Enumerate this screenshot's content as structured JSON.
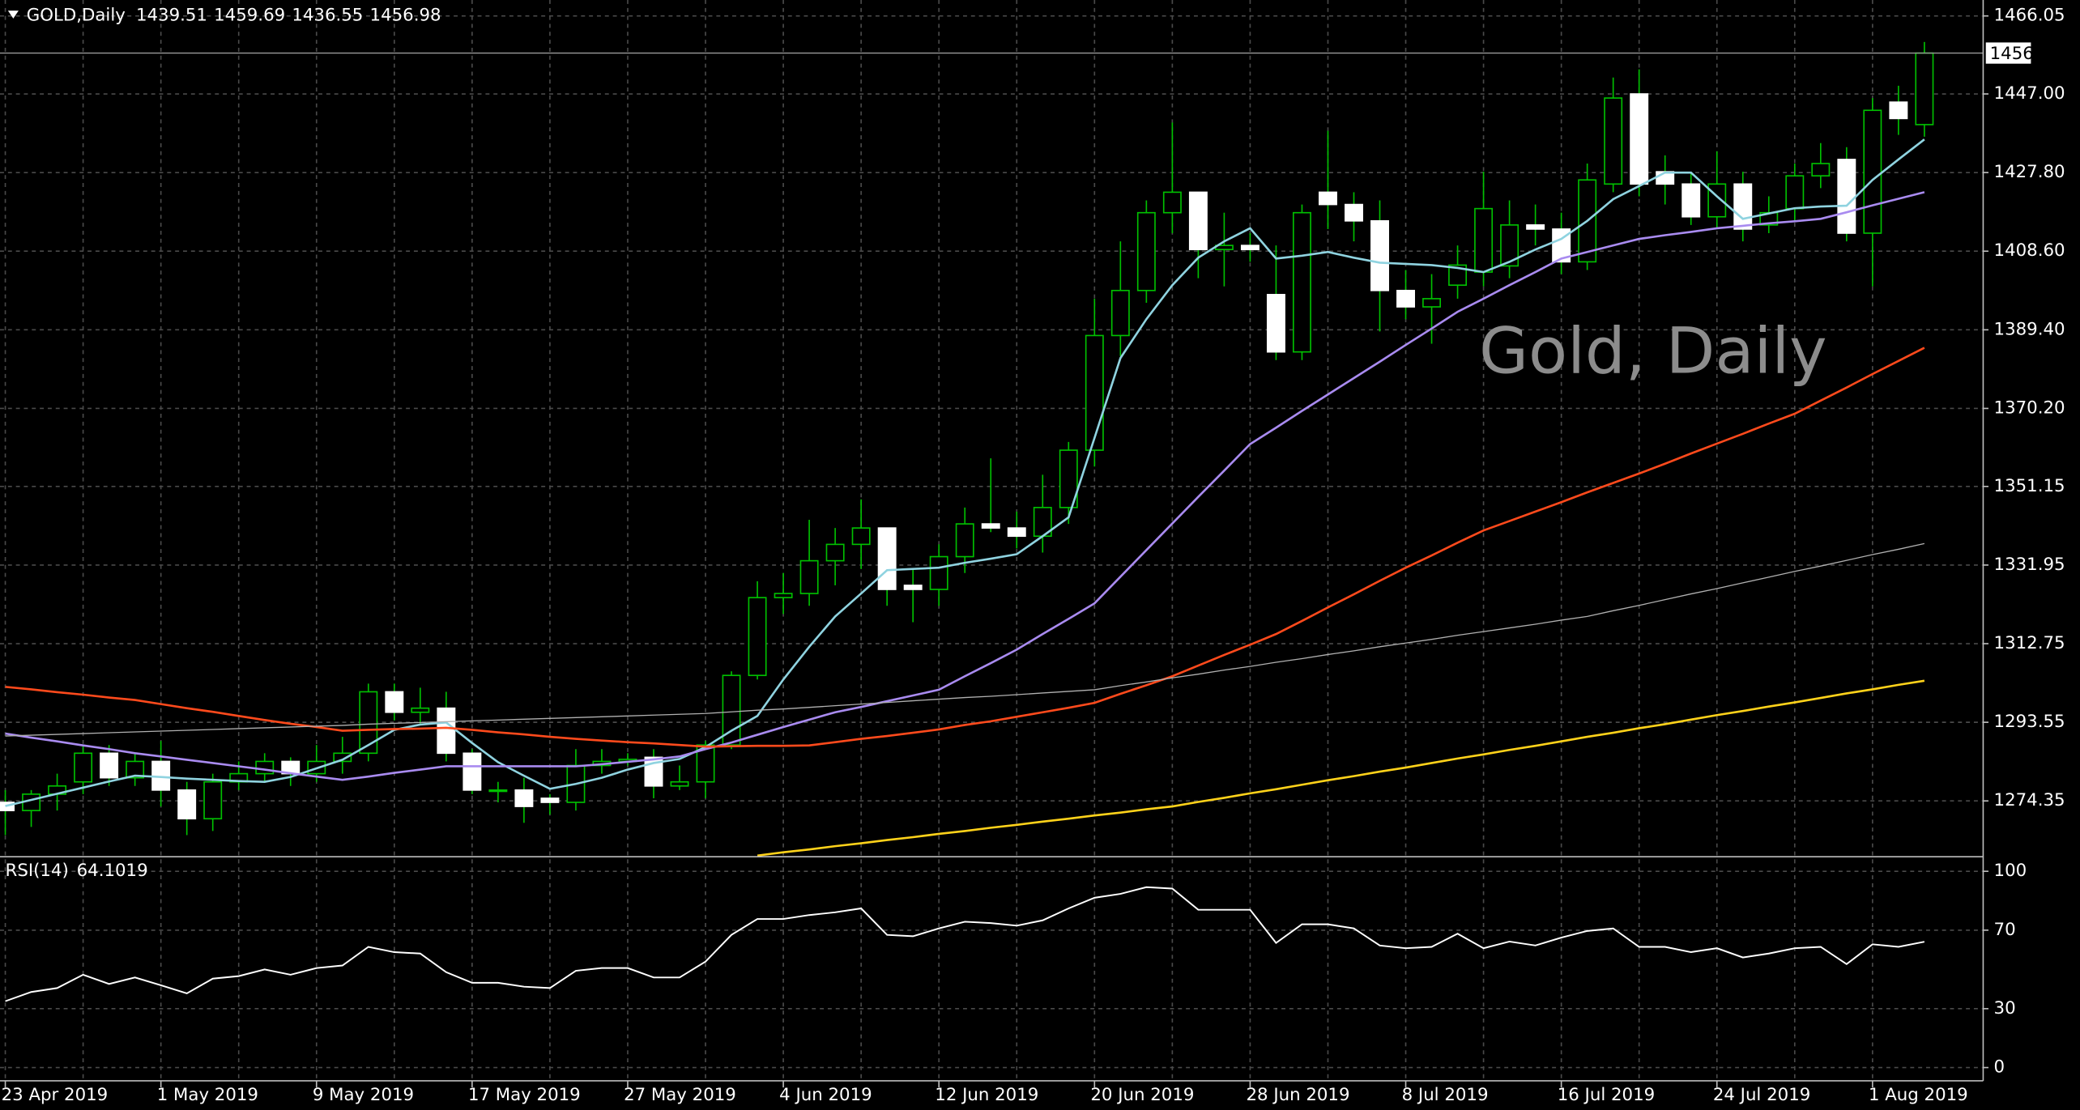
{
  "chart_data": [
    {
      "type": "candlestick",
      "symbol": "GOLD,Daily",
      "open_price": 1439.51,
      "high_price": 1459.69,
      "low_price": 1436.55,
      "close_price": 1456.98,
      "watermark": "Gold, Daily",
      "categories": [
        "23 Apr 2019",
        null,
        null,
        null,
        null,
        null,
        "1 May 2019",
        null,
        null,
        null,
        null,
        null,
        "9 May 2019",
        null,
        null,
        null,
        null,
        null,
        "17 May 2019",
        null,
        null,
        null,
        null,
        null,
        "27 May 2019",
        null,
        null,
        null,
        null,
        null,
        "4 Jun 2019",
        null,
        null,
        null,
        null,
        null,
        "12 Jun 2019",
        null,
        null,
        null,
        null,
        null,
        "20 Jun 2019",
        null,
        null,
        null,
        null,
        null,
        "28 Jun 2019",
        null,
        null,
        null,
        null,
        null,
        "8 Jul 2019",
        null,
        null,
        null,
        null,
        null,
        "16 Jul 2019",
        null,
        null,
        null,
        null,
        null,
        "24 Jul 2019",
        null,
        null,
        null,
        null,
        null,
        "1 Aug 2019",
        null,
        null
      ],
      "open": [
        1274,
        1272,
        1276,
        1279,
        1286,
        1280,
        1284,
        1277,
        1270,
        1279,
        1281,
        1284,
        1281,
        1284,
        1286,
        1301,
        1296,
        1297,
        1286,
        1277,
        1277,
        1275,
        1274,
        1283,
        1284,
        1285,
        1278,
        1279,
        1288,
        1305,
        1324,
        1325,
        1333,
        1337,
        1341,
        1327,
        1326,
        1334,
        1342,
        1341,
        1339,
        1346,
        1360,
        1388,
        1399,
        1418,
        1423,
        1409,
        1410,
        1398,
        1384,
        1423,
        1420,
        1416,
        1399,
        1395,
        1400.3,
        1403.5,
        1405,
        1415,
        1414,
        1406,
        1425,
        1447,
        1428,
        1425,
        1417,
        1425,
        1415,
        1419,
        1427,
        1431,
        1413,
        1445,
        1439.51
      ],
      "high": [
        1277,
        1277,
        1281,
        1288,
        1288,
        1286,
        1289,
        1279,
        1281,
        1284,
        1286,
        1285,
        1288,
        1290,
        1303,
        1303,
        1302,
        1301,
        1287,
        1279,
        1280,
        1276,
        1287,
        1287,
        1286,
        1287,
        1283,
        1289,
        1306,
        1328,
        1330,
        1343,
        1341,
        1348,
        1341,
        1331,
        1337,
        1346,
        1358,
        1345,
        1354,
        1362,
        1397,
        1411,
        1421,
        1440,
        1423,
        1418,
        1413,
        1410,
        1420,
        1438,
        1423,
        1421,
        1404,
        1403,
        1410,
        1428,
        1421,
        1420,
        1418,
        1430,
        1451,
        1453,
        1432,
        1428,
        1433,
        1428,
        1422,
        1430,
        1435,
        1434,
        1446,
        1449,
        1459.69
      ],
      "low": [
        1266,
        1268,
        1272,
        1276,
        1278,
        1278,
        1273,
        1266,
        1267,
        1277,
        1279,
        1278,
        1279,
        1281,
        1284,
        1294,
        1293,
        1284,
        1276,
        1274,
        1269,
        1271,
        1272,
        1281,
        1283,
        1275,
        1277,
        1275,
        1287,
        1304,
        1320,
        1322,
        1327,
        1331,
        1322,
        1318,
        1322,
        1330,
        1340,
        1336,
        1335,
        1342,
        1356,
        1383,
        1396,
        1413,
        1402,
        1400,
        1406,
        1382,
        1382,
        1414,
        1411,
        1389,
        1392,
        1386,
        1397,
        1400,
        1402,
        1410,
        1403,
        1404,
        1423,
        1422,
        1420,
        1415,
        1414,
        1411,
        1413,
        1416,
        1424,
        1411,
        1400,
        1437,
        1436.55
      ],
      "close": [
        1272,
        1276,
        1278,
        1286,
        1280,
        1284,
        1277,
        1270,
        1279,
        1281,
        1284,
        1281,
        1284,
        1286,
        1301,
        1296,
        1297,
        1286,
        1277,
        1277,
        1273,
        1274,
        1283,
        1284,
        1284.5,
        1278,
        1279,
        1288,
        1305,
        1324,
        1325,
        1333,
        1337,
        1341,
        1326,
        1326,
        1334,
        1342,
        1341,
        1339,
        1346,
        1360,
        1388,
        1399,
        1418,
        1423,
        1409,
        1410,
        1409,
        1384,
        1418,
        1420,
        1416,
        1399,
        1395,
        1397,
        1405.2,
        1419,
        1415,
        1414,
        1406,
        1426,
        1446,
        1425,
        1425,
        1417,
        1425,
        1414,
        1418,
        1427,
        1430,
        1413,
        1443,
        1441,
        1456.98
      ],
      "up_color": "#00c000",
      "down_color": "#ffffff",
      "series": [
        {
          "color": "#8fd3e0",
          "values": [
            1273.1,
            1274.6,
            1276.1,
            1277.6,
            1279.1,
            1280.5,
            1280.2,
            1279.8,
            1279.5,
            1279.2,
            1279.0,
            1280.2,
            1282.3,
            1284.4,
            1288.0,
            1291.7,
            1293.0,
            1293.5,
            1288.5,
            1283.8,
            1280.5,
            1277.3,
            1278.5,
            1280.0,
            1282.0,
            1283.6,
            1284.6,
            1287.5,
            1291.5,
            1295.1,
            1304.0,
            1312.0,
            1319.4,
            1325.0,
            1330.7,
            1331.0,
            1331.3,
            1332.5,
            1333.5,
            1334.6,
            1339.0,
            1343.6,
            1363.0,
            1382.5,
            1392.0,
            1400.3,
            1407.0,
            1411.0,
            1414.2,
            1406.8,
            1407.5,
            1408.4,
            1407.0,
            1405.8,
            1405.5,
            1405.2,
            1404.5,
            1403.5,
            1406.0,
            1409.0,
            1411.6,
            1416.0,
            1421.3,
            1424.5,
            1427.8,
            1427.8,
            1422.0,
            1416.5,
            1417.8,
            1419.1,
            1419.5,
            1419.7,
            1426.0,
            1431.0,
            1435.9
          ]
        },
        {
          "color": "#a98bf0",
          "values": [
            1290.8,
            1289.8,
            1288.9,
            1287.9,
            1287.0,
            1286.0,
            1285.2,
            1284.4,
            1283.6,
            1282.8,
            1282.0,
            1281.1,
            1280.3,
            1279.5,
            1280.3,
            1281.2,
            1282.0,
            1282.8,
            1282.8,
            1282.8,
            1282.8,
            1282.8,
            1282.8,
            1283.3,
            1283.9,
            1284.5,
            1285.2,
            1287.0,
            1288.6,
            1290.5,
            1292.4,
            1294.2,
            1296.0,
            1297.3,
            1298.7,
            1300.1,
            1301.5,
            1304.8,
            1308.0,
            1311.3,
            1315.1,
            1318.8,
            1322.6,
            1329.1,
            1335.6,
            1342.1,
            1348.6,
            1355.0,
            1361.5,
            1365.5,
            1369.6,
            1373.6,
            1377.6,
            1381.6,
            1385.7,
            1389.7,
            1393.8,
            1397.0,
            1400.3,
            1403.5,
            1406.8,
            1408.4,
            1410.0,
            1411.6,
            1412.5,
            1413.3,
            1414.2,
            1414.8,
            1415.4,
            1415.9,
            1416.5,
            1418.1,
            1419.8,
            1421.4,
            1423.0
          ]
        },
        {
          "color": "#ff4a1c",
          "values": [
            1302.2,
            1301.6,
            1300.9,
            1300.3,
            1299.6,
            1299.0,
            1298.0,
            1297.0,
            1296.1,
            1295.1,
            1294.1,
            1293.2,
            1292.4,
            1291.5,
            1291.7,
            1291.9,
            1292.0,
            1292.2,
            1291.7,
            1291.1,
            1290.6,
            1290.0,
            1289.5,
            1289.1,
            1288.7,
            1288.4,
            1288.0,
            1287.6,
            1287.7,
            1287.8,
            1287.8,
            1287.9,
            1288.7,
            1289.5,
            1290.2,
            1291.0,
            1291.8,
            1292.9,
            1293.8,
            1294.9,
            1296.0,
            1297.1,
            1298.3,
            1300.5,
            1302.6,
            1304.8,
            1307.4,
            1310.0,
            1312.5,
            1315.1,
            1318.3,
            1321.6,
            1324.8,
            1328.1,
            1331.3,
            1334.3,
            1337.4,
            1340.4,
            1342.7,
            1345.0,
            1347.3,
            1349.7,
            1352.0,
            1354.3,
            1356.7,
            1359.2,
            1361.6,
            1364.0,
            1366.5,
            1368.9,
            1372.1,
            1375.3,
            1378.6,
            1381.8,
            1385.0
          ]
        },
        {
          "color": "#b0b0b0",
          "values": [
            1290.2,
            1290.4,
            1290.6,
            1290.8,
            1291.0,
            1291.2,
            1291.4,
            1291.6,
            1291.8,
            1292.0,
            1292.2,
            1292.4,
            1292.6,
            1292.8,
            1293.1,
            1293.3,
            1293.5,
            1293.7,
            1293.9,
            1294.1,
            1294.3,
            1294.5,
            1294.7,
            1294.9,
            1295.1,
            1295.3,
            1295.5,
            1295.7,
            1296.1,
            1296.5,
            1296.8,
            1297.2,
            1297.6,
            1298.0,
            1298.4,
            1298.8,
            1299.2,
            1299.6,
            1299.9,
            1300.3,
            1300.7,
            1301.1,
            1301.5,
            1302.5,
            1303.4,
            1304.4,
            1305.3,
            1306.3,
            1307.2,
            1308.2,
            1309.1,
            1310.1,
            1311.0,
            1312.0,
            1312.9,
            1313.8,
            1314.8,
            1315.7,
            1316.6,
            1317.5,
            1318.5,
            1319.4,
            1320.8,
            1322.1,
            1323.5,
            1324.9,
            1326.2,
            1327.6,
            1329.0,
            1330.4,
            1331.7,
            1333.1,
            1334.5,
            1335.8,
            1337.2
          ]
        },
        {
          "color": "#ffd21a",
          "values": [
            null,
            null,
            null,
            null,
            null,
            null,
            null,
            null,
            null,
            null,
            null,
            null,
            null,
            null,
            null,
            null,
            null,
            null,
            null,
            null,
            null,
            null,
            null,
            null,
            null,
            null,
            null,
            null,
            null,
            1261.0,
            1261.8,
            1262.5,
            1263.3,
            1264.0,
            1264.8,
            1265.5,
            1266.3,
            1267.0,
            1267.8,
            1268.5,
            1269.3,
            1270.0,
            1270.8,
            1271.5,
            1272.3,
            1273.0,
            1274.1,
            1275.1,
            1276.2,
            1277.2,
            1278.3,
            1279.4,
            1280.4,
            1281.5,
            1282.5,
            1283.6,
            1284.7,
            1285.7,
            1286.8,
            1287.8,
            1288.9,
            1290.0,
            1291.0,
            1292.1,
            1293.1,
            1294.2,
            1295.3,
            1296.3,
            1297.4,
            1298.4,
            1299.5,
            1300.6,
            1301.6,
            1302.7,
            1303.7
          ]
        }
      ],
      "ylim": [
        1261.05,
        1469.94
      ],
      "yticks": [
        1466.05,
        {
          "value": 1447,
          "label": "1447.00"
        },
        {
          "value": 1427.8,
          "label": "1427.80"
        },
        {
          "value": 1408.6,
          "label": "1408.60"
        },
        {
          "value": 1389.4,
          "label": "1389.40"
        },
        {
          "value": 1370.2,
          "label": "1370.20"
        },
        1351.15,
        1331.95,
        1312.75,
        1293.55,
        1274.35
      ],
      "grid": true
    },
    {
      "type": "line",
      "title": "RSI(14)",
      "color": "#ffffff",
      "values": [
        33.8,
        38.5,
        40.5,
        47.3,
        42.6,
        45.9,
        41.9,
        37.8,
        45.3,
        46.6,
        50.0,
        47.3,
        50.7,
        52.0,
        61.5,
        58.8,
        58.1,
        48.6,
        43.2,
        43.2,
        41.2,
        40.5,
        49.3,
        50.7,
        50.7,
        45.9,
        45.9,
        54.0,
        67.6,
        75.7,
        75.7,
        77.7,
        79.1,
        81.1,
        67.6,
        66.9,
        70.9,
        74.3,
        73.6,
        72.3,
        75.0,
        81.1,
        86.5,
        88.5,
        91.9,
        91.2,
        80.4,
        80.4,
        80.4,
        63.5,
        73.0,
        73.0,
        70.9,
        62.2,
        60.8,
        61.5,
        68.2,
        60.8,
        64.2,
        62.2,
        66.2,
        69.6,
        70.9,
        61.5,
        61.5,
        58.8,
        60.8,
        56.1,
        58.1,
        60.8,
        61.5,
        52.7,
        62.8,
        61.5,
        64.1019
      ],
      "ylim": [
        -6.76,
        106.08
      ],
      "yticks": [
        0,
        30,
        70,
        100
      ],
      "grid": true
    }
  ]
}
